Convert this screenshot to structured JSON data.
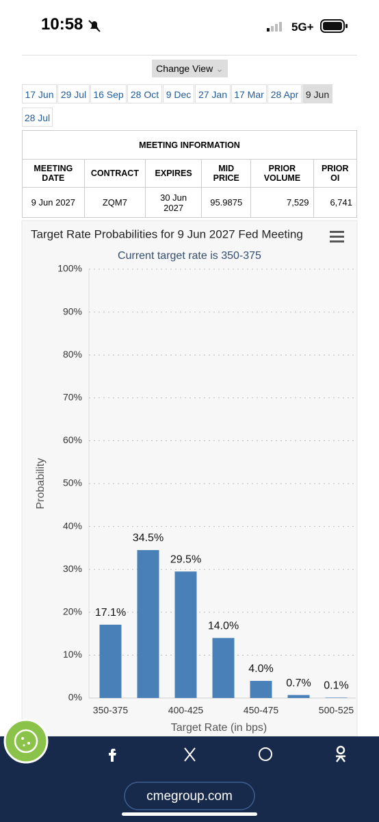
{
  "status_bar": {
    "time": "10:58",
    "network": "5G+"
  },
  "change_view": "Change View",
  "tabs": [
    "17 Jun",
    "29 Jul",
    "16 Sep",
    "28 Oct",
    "9 Dec",
    "27 Jan",
    "17 Mar",
    "28 Apr",
    "9 Jun",
    "28 Jul"
  ],
  "selected_tab": "9 Jun",
  "table": {
    "title": "MEETING INFORMATION",
    "headers": [
      "MEETING DATE",
      "CONTRACT",
      "EXPIRES",
      "MID PRICE",
      "PRIOR VOLUME",
      "PRIOR OI"
    ],
    "rows": [
      [
        "9 Jun 2027",
        "ZQM7",
        "30 Jun 2027",
        "95.9875",
        "7,529",
        "6,741"
      ]
    ]
  },
  "chart_data": {
    "type": "bar",
    "title": "Target Rate Probabilities for 9 Jun 2027 Fed Meeting",
    "subtitle": "Current target rate is 350-375",
    "x_label": "Target Rate (in bps)",
    "y_label": "Probability",
    "categories": [
      "350-375",
      null,
      "400-425",
      null,
      "450-475",
      null,
      "500-525"
    ],
    "values": [
      17.1,
      34.5,
      29.5,
      14.0,
      4.0,
      0.7,
      0.1
    ],
    "value_labels": [
      "17.1%",
      "34.5%",
      "29.5%",
      "14.0%",
      "4.0%",
      "0.7%",
      "0.1%"
    ],
    "color": "#4a80b8",
    "ylim": [
      0,
      100
    ],
    "yticks": [
      {
        "value": 0,
        "label": "0%"
      },
      {
        "value": 10,
        "label": "10%"
      },
      {
        "value": 20,
        "label": "20%"
      },
      {
        "value": 30,
        "label": "30%"
      },
      {
        "value": 40,
        "label": "40%"
      },
      {
        "value": 50,
        "label": "50%"
      },
      {
        "value": 60,
        "label": "60%"
      },
      {
        "value": 70,
        "label": "70%"
      },
      {
        "value": 80,
        "label": "80%"
      },
      {
        "value": 90,
        "label": "90%"
      },
      {
        "value": 100,
        "label": "100%"
      }
    ],
    "grid": true
  },
  "footer": {
    "url": "cmegroup.com"
  }
}
